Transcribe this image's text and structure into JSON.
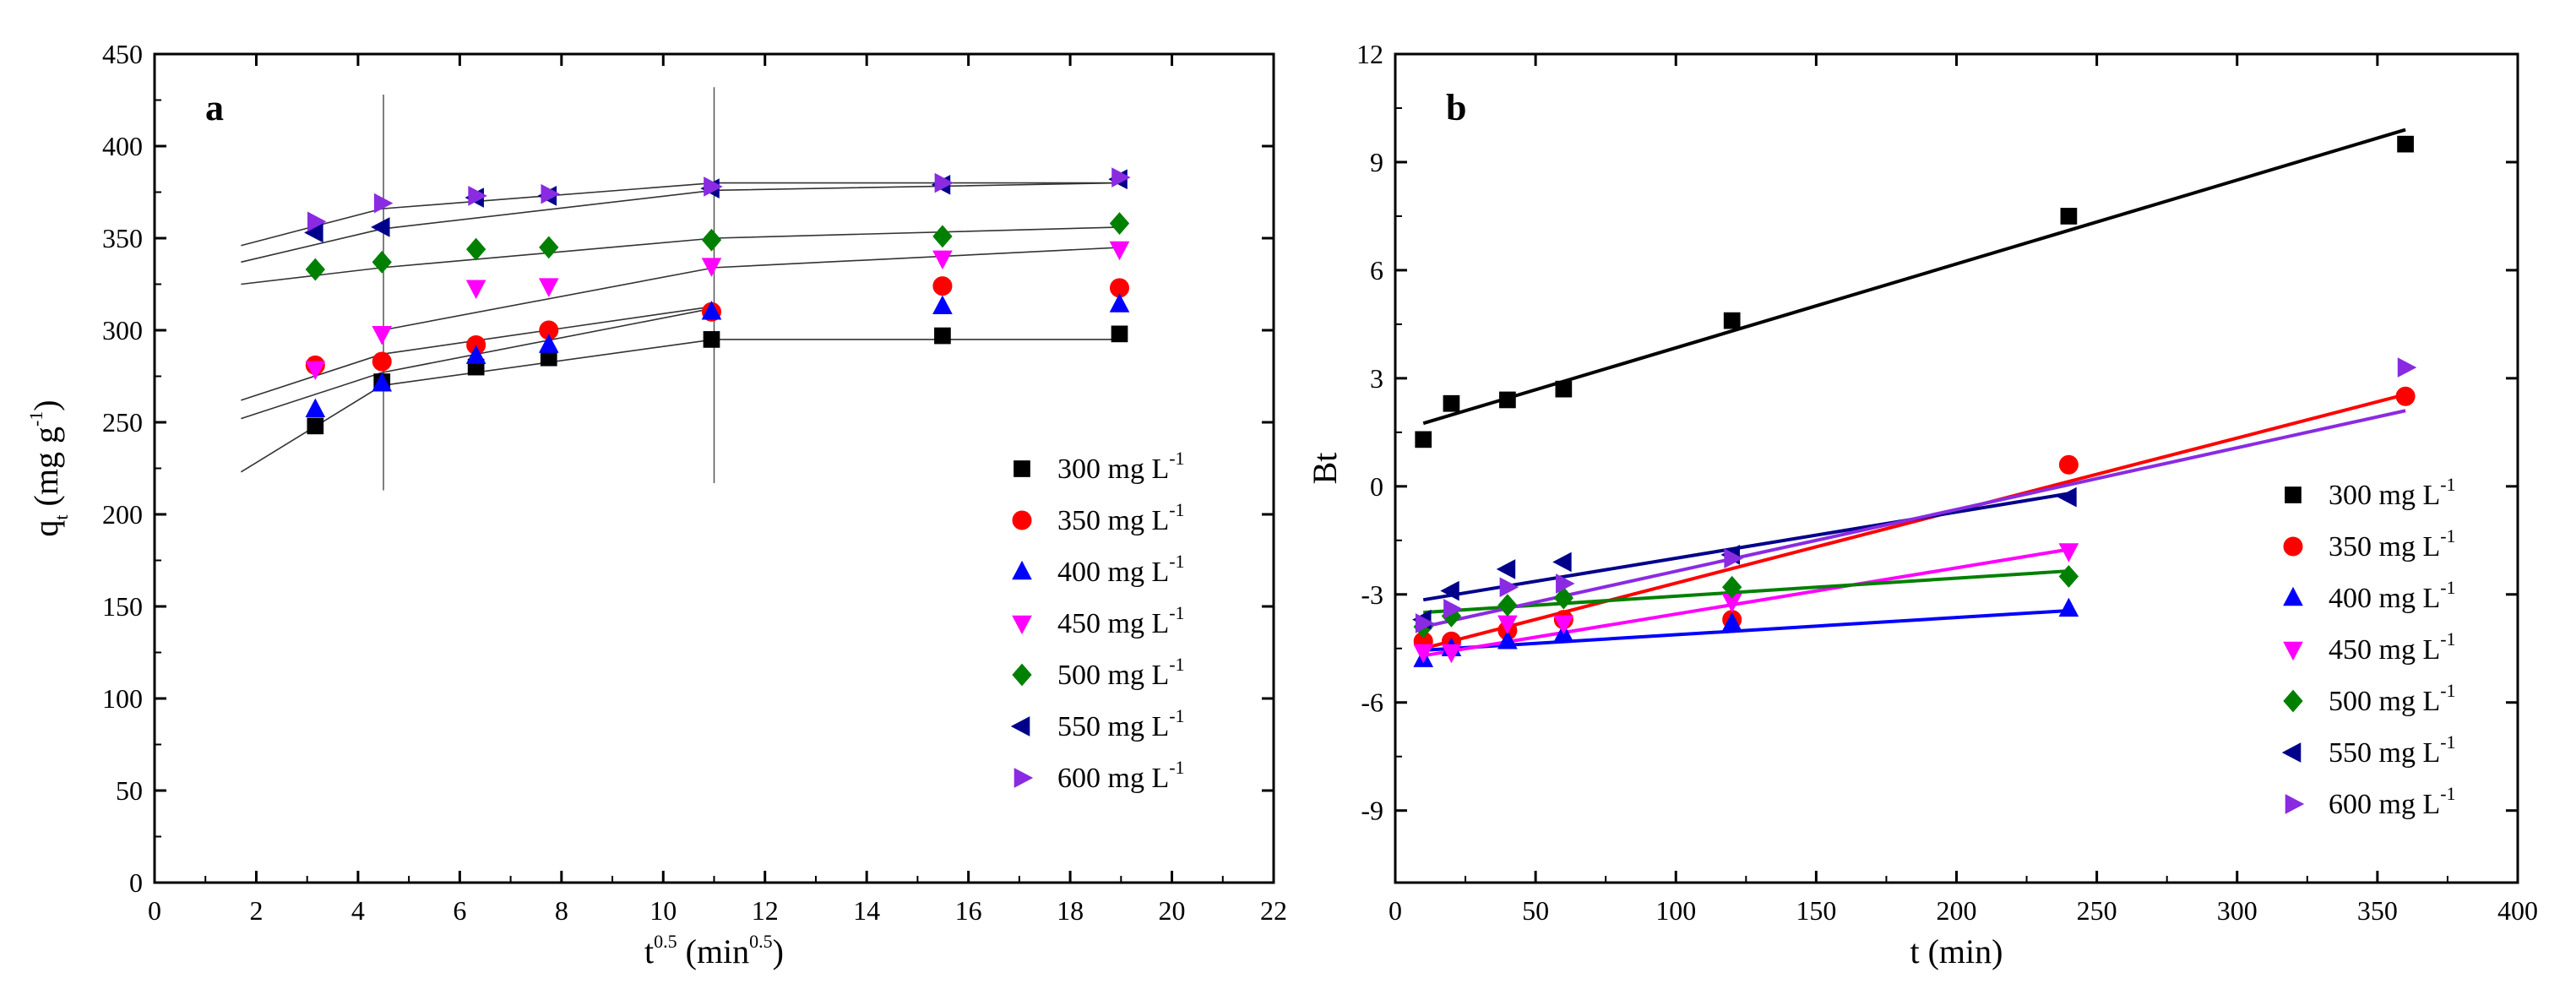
{
  "chart_data": [
    {
      "id": "a",
      "type": "scatter",
      "panel_label": "a",
      "xlabel_base": "t",
      "xlabel_exp": "0.5",
      "xlabel_unit": " (min",
      "xlabel_unit_exp": "0.5",
      "xlabel_close": ")",
      "ylabel_base": "q",
      "ylabel_sub": "t",
      "ylabel_unit": " (mg g",
      "ylabel_unit_exp": "-1",
      "ylabel_close": ")",
      "xlim": [
        0,
        22
      ],
      "ylim": [
        0,
        450
      ],
      "xticks": [
        0,
        2,
        4,
        6,
        8,
        10,
        12,
        14,
        16,
        18,
        20,
        22
      ],
      "yticks": [
        0,
        50,
        100,
        150,
        200,
        250,
        300,
        350,
        400,
        450
      ],
      "vlines": [
        {
          "x": 4.5,
          "y": [
            213,
            428
          ]
        },
        {
          "x": 11.0,
          "y": [
            217,
            432
          ]
        }
      ],
      "legend_position": "lower-right",
      "series": [
        {
          "name": "300 mg L",
          "unit_exp": "-1",
          "marker": "square",
          "color": "#000000",
          "x": [
            3.16,
            4.47,
            6.32,
            7.75,
            10.95,
            15.49,
            18.97
          ],
          "y": [
            248,
            272,
            280,
            285,
            295,
            297,
            298
          ],
          "fit": [
            [
              [
                1.7,
                223
              ],
              [
                4.47,
                270
              ],
              [
                11.0,
                295
              ]
            ],
            [
              [
                11.0,
                295
              ],
              [
                19.0,
                295
              ]
            ]
          ]
        },
        {
          "name": "350 mg L",
          "unit_exp": "-1",
          "marker": "circle",
          "color": "#ff0000",
          "x": [
            3.16,
            4.47,
            6.32,
            7.75,
            10.95,
            15.49,
            18.97
          ],
          "y": [
            281,
            283,
            292,
            300,
            310,
            324,
            323
          ],
          "fit": []
        },
        {
          "name": "400 mg L",
          "unit_exp": "-1",
          "marker": "triangle-up",
          "color": "#0000ff",
          "x": [
            3.16,
            4.47,
            6.32,
            7.75,
            10.95,
            15.49,
            18.97
          ],
          "y": [
            257,
            271,
            286,
            292,
            310,
            313,
            314
          ],
          "fit": [
            [
              [
                1.7,
                252
              ],
              [
                4.47,
                277
              ],
              [
                11.0,
                312
              ]
            ]
          ]
        },
        {
          "name": "450 mg L",
          "unit_exp": "-1",
          "marker": "triangle-down",
          "color": "#ff00ff",
          "x": [
            3.16,
            4.47,
            6.32,
            7.75,
            10.95,
            15.49,
            18.97
          ],
          "y": [
            279,
            298,
            323,
            324,
            335,
            339,
            344
          ],
          "fit": [
            [
              [
                1.7,
                262
              ],
              [
                4.47,
                287
              ],
              [
                11.0,
                313
              ]
            ],
            [
              [
                4.47,
                300
              ],
              [
                11.0,
                334
              ],
              [
                19.0,
                345
              ]
            ]
          ]
        },
        {
          "name": "500 mg L",
          "unit_exp": "-1",
          "marker": "diamond",
          "color": "#008000",
          "x": [
            3.16,
            4.47,
            6.32,
            7.75,
            10.95,
            15.49,
            18.97
          ],
          "y": [
            333,
            337,
            344,
            345,
            349,
            351,
            358
          ],
          "fit": [
            [
              [
                1.7,
                325
              ],
              [
                4.47,
                334
              ],
              [
                11.0,
                350
              ],
              [
                19.0,
                356
              ]
            ]
          ]
        },
        {
          "name": "550 mg L",
          "unit_exp": "-1",
          "marker": "triangle-left",
          "color": "#00008b",
          "x": [
            3.16,
            4.47,
            6.32,
            7.75,
            10.95,
            15.49,
            18.97
          ],
          "y": [
            353,
            356,
            372,
            373,
            377,
            379,
            382
          ],
          "fit": [
            [
              [
                1.7,
                337
              ],
              [
                4.47,
                355
              ],
              [
                11.0,
                376
              ],
              [
                19.0,
                380
              ]
            ]
          ]
        },
        {
          "name": "600 mg L",
          "unit_exp": "-1",
          "marker": "triangle-right",
          "color": "#8a2be2",
          "x": [
            3.16,
            4.47,
            6.32,
            7.75,
            10.95,
            15.49,
            18.97
          ],
          "y": [
            359,
            369,
            373,
            374,
            378,
            380,
            383
          ],
          "fit": [
            [
              [
                1.7,
                346
              ],
              [
                4.47,
                366
              ],
              [
                11.0,
                380
              ],
              [
                19.0,
                380
              ]
            ]
          ]
        }
      ]
    },
    {
      "id": "b",
      "type": "scatter",
      "panel_label": "b",
      "xlabel": "t (min)",
      "ylabel": "Bt",
      "xlim": [
        0,
        400
      ],
      "ylim": [
        -11,
        12
      ],
      "xticks": [
        0,
        50,
        100,
        150,
        200,
        250,
        300,
        350,
        400
      ],
      "yticks": [
        -9,
        -6,
        -3,
        0,
        3,
        6,
        9,
        12
      ],
      "legend_position": "lower-right",
      "series": [
        {
          "name": "300 mg L",
          "unit_exp": "-1",
          "marker": "square",
          "color": "#000000",
          "x": [
            10,
            20,
            40,
            60,
            120,
            240,
            360
          ],
          "y": [
            1.3,
            2.3,
            2.4,
            2.7,
            4.6,
            7.5,
            9.5
          ],
          "fit": [
            [
              [
                10,
                1.75
              ],
              [
                360,
                9.9
              ]
            ]
          ]
        },
        {
          "name": "350 mg L",
          "unit_exp": "-1",
          "marker": "circle",
          "color": "#ff0000",
          "x": [
            10,
            20,
            40,
            60,
            120,
            240,
            360
          ],
          "y": [
            -4.3,
            -4.3,
            -4.0,
            -3.7,
            -3.7,
            0.6,
            2.5
          ],
          "fit": [
            [
              [
                10,
                -4.5
              ],
              [
                360,
                2.55
              ]
            ]
          ]
        },
        {
          "name": "400 mg L",
          "unit_exp": "-1",
          "marker": "triangle-up",
          "color": "#0000ff",
          "x": [
            10,
            20,
            40,
            60,
            120,
            240
          ],
          "y": [
            -4.8,
            -4.5,
            -4.3,
            -4.1,
            -3.8,
            -3.4
          ],
          "fit": [
            [
              [
                10,
                -4.55
              ],
              [
                240,
                -3.45
              ]
            ]
          ]
        },
        {
          "name": "450 mg L",
          "unit_exp": "-1",
          "marker": "triangle-down",
          "color": "#ff00ff",
          "x": [
            10,
            20,
            40,
            60,
            120,
            240
          ],
          "y": [
            -4.6,
            -4.6,
            -3.8,
            -3.8,
            -3.2,
            -1.8
          ],
          "fit": [
            [
              [
                10,
                -4.7
              ],
              [
                240,
                -1.75
              ]
            ]
          ]
        },
        {
          "name": "500 mg L",
          "unit_exp": "-1",
          "marker": "diamond",
          "color": "#008000",
          "x": [
            10,
            20,
            40,
            60,
            120,
            240
          ],
          "y": [
            -3.9,
            -3.6,
            -3.3,
            -3.1,
            -2.8,
            -2.5
          ],
          "fit": [
            [
              [
                10,
                -3.5
              ],
              [
                240,
                -2.35
              ]
            ]
          ]
        },
        {
          "name": "550 mg L",
          "unit_exp": "-1",
          "marker": "triangle-left",
          "color": "#00008b",
          "x": [
            10,
            20,
            40,
            60,
            120,
            240
          ],
          "y": [
            -3.7,
            -2.9,
            -2.3,
            -2.1,
            -1.9,
            -0.3
          ],
          "fit": [
            [
              [
                10,
                -3.15
              ],
              [
                240,
                -0.2
              ]
            ]
          ]
        },
        {
          "name": "600 mg L",
          "unit_exp": "-1",
          "marker": "triangle-right",
          "color": "#8a2be2",
          "x": [
            10,
            20,
            40,
            60,
            120,
            360
          ],
          "y": [
            -3.8,
            -3.4,
            -2.8,
            -2.7,
            -2.0,
            3.3
          ],
          "fit": [
            [
              [
                10,
                -3.9
              ],
              [
                360,
                2.1
              ]
            ]
          ]
        }
      ]
    }
  ]
}
